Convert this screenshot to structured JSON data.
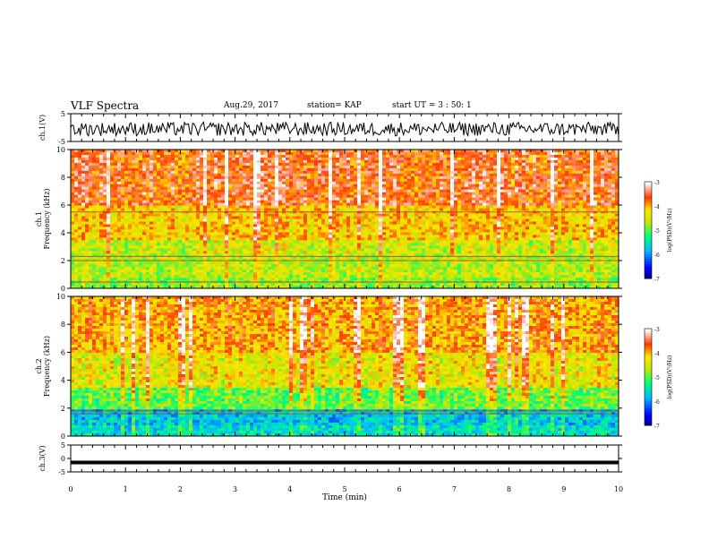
{
  "header": {
    "title": "VLF Spectra",
    "date": "Aug.29, 2017",
    "station": "station= KAP",
    "start": "start  UT =   3 : 50: 1"
  },
  "chart_data": [
    {
      "type": "line",
      "panel": "ch1-waveform",
      "ylabel": "ch.1(V)",
      "ylim": [
        -5,
        5
      ],
      "yticks": [
        "5",
        "-5"
      ],
      "xlim": [
        0,
        10
      ],
      "color": "#000000",
      "description_values": {
        "mean": -0.5,
        "amplitude": 2.5
      }
    },
    {
      "type": "heatmap",
      "panel": "ch1-spectrogram",
      "ylabel": "ch.1\nFrequency (kHz)",
      "ylim": [
        0,
        10
      ],
      "yticks": [
        "0",
        "2",
        "4",
        "6",
        "8",
        "10"
      ],
      "xlim": [
        0,
        10
      ],
      "colorbar": {
        "label": "log(PSD)(V²/Hz)",
        "range": [
          -7,
          -3
        ],
        "ticks": [
          "-3",
          "-4",
          "-5",
          "-6",
          "-7"
        ]
      },
      "bands": [
        {
          "from": 0,
          "to": 0.8,
          "level": -4.8
        },
        {
          "from": 0.8,
          "to": 2.5,
          "level": -4.6
        },
        {
          "from": 2.5,
          "to": 3.5,
          "level": -4.5
        },
        {
          "from": 3.5,
          "to": 6,
          "level": -4.1
        },
        {
          "from": 6,
          "to": 10,
          "level": -3.6
        }
      ],
      "lines_khz": [
        0.45,
        2.0,
        2.3,
        5.5
      ]
    },
    {
      "type": "heatmap",
      "panel": "ch2-spectrogram",
      "ylabel": "ch.2\nFrequency (kHz)",
      "ylim": [
        0,
        10
      ],
      "yticks": [
        "0",
        "2",
        "4",
        "6",
        "8",
        "10"
      ],
      "xlim": [
        0,
        10
      ],
      "colorbar": {
        "label": "log(PSD)(V²/Hz)",
        "range": [
          -7,
          -3
        ],
        "ticks": [
          "-3",
          "-4",
          "-5",
          "-6",
          "-7"
        ]
      },
      "bands": [
        {
          "from": 0,
          "to": 0.8,
          "level": -5.5
        },
        {
          "from": 0.8,
          "to": 2.0,
          "level": -5.7
        },
        {
          "from": 2.0,
          "to": 3.5,
          "level": -4.9
        },
        {
          "from": 3.5,
          "to": 6,
          "level": -4.3
        },
        {
          "from": 6,
          "to": 10,
          "level": -3.9
        }
      ],
      "lines_khz": [
        1.6,
        1.8
      ]
    },
    {
      "type": "line",
      "panel": "ch3-waveform",
      "ylabel": "ch.3(V)",
      "ylim": [
        -5,
        5
      ],
      "yticks": [
        "5",
        "0",
        "-5"
      ],
      "xlim": [
        0,
        10
      ],
      "xlabel": "Time (min)",
      "xticks": [
        "0",
        "1",
        "2",
        "3",
        "4",
        "5",
        "6",
        "7",
        "8",
        "9",
        "10"
      ],
      "values": {
        "mean": -1.5
      }
    }
  ]
}
